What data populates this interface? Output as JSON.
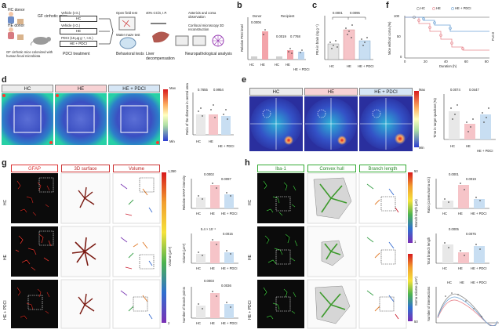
{
  "panel_a": {
    "label": "a",
    "hc_donor": "HC donor",
    "he_donor": "HE donor",
    "gf_mice": "GF cirrhotic mice",
    "mouse_note": "GF cirrhotic mice colonized with human fecal microbiota",
    "vehicle1": "Vehicle (I.G.)",
    "hc": "HC",
    "vehicle2": "Vehicle (I.G.)",
    "he": "HE",
    "pdci_dose": "PDCI (15 μg g⁻¹, I.G.)",
    "he_pdci": "HE + PDCI",
    "treatment": "PDCI treatment",
    "open_field": "Open field test",
    "water_maze": "Water maze test",
    "behavioral": "Behavioral tests",
    "co2": "40% CCl4, I.P.",
    "liver": "Liver decompensation",
    "asterixis": "Asterixis and coma observation",
    "confocal": "Confocal microscopy 3D reconstruction",
    "neuro": "Neuropathological analysis"
  },
  "panel_b": {
    "label": "b",
    "ylabel": "Relative PDC level",
    "donor": "Donor",
    "recipient": "Recipient",
    "p1": "0.0006",
    "p2": "0.0019",
    "p3": "0.7768",
    "cats": [
      "HC",
      "HE",
      "HC",
      "HE",
      "HE + PDCI"
    ]
  },
  "panel_c": {
    "label": "c",
    "ylabel": "PEA in brain (ng g⁻¹)",
    "p1": "0.0001",
    "p2": "0.0095",
    "cats": [
      "HC",
      "HE",
      "HE + PDCI"
    ]
  },
  "panel_f": {
    "label": "f",
    "ylabel": "Mice without coma (%)",
    "xlabel": "Duration (h)",
    "legend": [
      "HC",
      "HE",
      "HE + PDCI"
    ],
    "p": "P=0.0",
    "yticks": [
      "100",
      "50",
      "0"
    ],
    "xticks": [
      "0",
      "20",
      "40",
      "60",
      "80"
    ]
  },
  "panel_d": {
    "label": "d",
    "headers": [
      "HC",
      "HE",
      "HE + PDCI"
    ],
    "scale_max": "Max",
    "scale_min": "Min",
    "ylabel": "Ratio of the distance in central area",
    "p1": "0.7655",
    "p2": "0.9954",
    "cats": [
      "HC",
      "HE",
      "HE + PDCI"
    ]
  },
  "panel_e": {
    "label": "e",
    "headers": [
      "HC",
      "HE",
      "HE + PDCI"
    ],
    "scale_max": "Max",
    "scale_min": "Min",
    "ylabel": "Time in target quadrant (%)",
    "p1": "0.0074",
    "p2": "0.0447",
    "cats": [
      "HC",
      "HE",
      "HE + PDCI"
    ]
  },
  "panel_g": {
    "label": "g",
    "headers": [
      "GFAP",
      "3D surface",
      "Volume"
    ],
    "rows": [
      "HC",
      "HE",
      "HE + PDCI"
    ],
    "volume_scale_top": "1,350",
    "volume_scale_mid": "Volume (μm³)",
    "volume_scale_bot": "2",
    "plot1": {
      "ylabel": "Relative GFAP intensity",
      "p1": "0.0002",
      "p2": "0.0097"
    },
    "plot2": {
      "ylabel": "Volume (μm³)",
      "p1": "5.4 × 10⁻⁶",
      "p2": "0.0015"
    },
    "plot3": {
      "ylabel": "Number of branch points",
      "p1": "0.0003",
      "p2": "0.0036"
    },
    "cats": [
      "HC",
      "HE",
      "HE + PDCI"
    ]
  },
  "panel_h": {
    "label": "h",
    "headers": [
      "Iba-1",
      "Convex hull",
      "Branch length"
    ],
    "rows": [
      "HC",
      "HE",
      "HE + PDCI"
    ],
    "branch_scale": "Branch length (μm)",
    "soma_scale": "Soma volume (μm³)",
    "scale_top": "50",
    "scale_mid": "1",
    "scale_bot": "50",
    "plot1": {
      "ylabel": "Ratio (convex/soma vol.)",
      "p1": "0.0001",
      "p2": "0.0019"
    },
    "plot2": {
      "ylabel": "Total branch length",
      "p1": "0.0005",
      "p2": "0.0075"
    },
    "plot3": {
      "ylabel": "Number of intersections",
      "legend": [
        "HC",
        "HE",
        "HE + PDCI"
      ]
    },
    "cats": [
      "HC",
      "HE",
      "HE + PDCI"
    ]
  },
  "colors": {
    "hc": "#9a9a9a",
    "he": "#e8878f",
    "pdci": "#6fa4d6"
  }
}
